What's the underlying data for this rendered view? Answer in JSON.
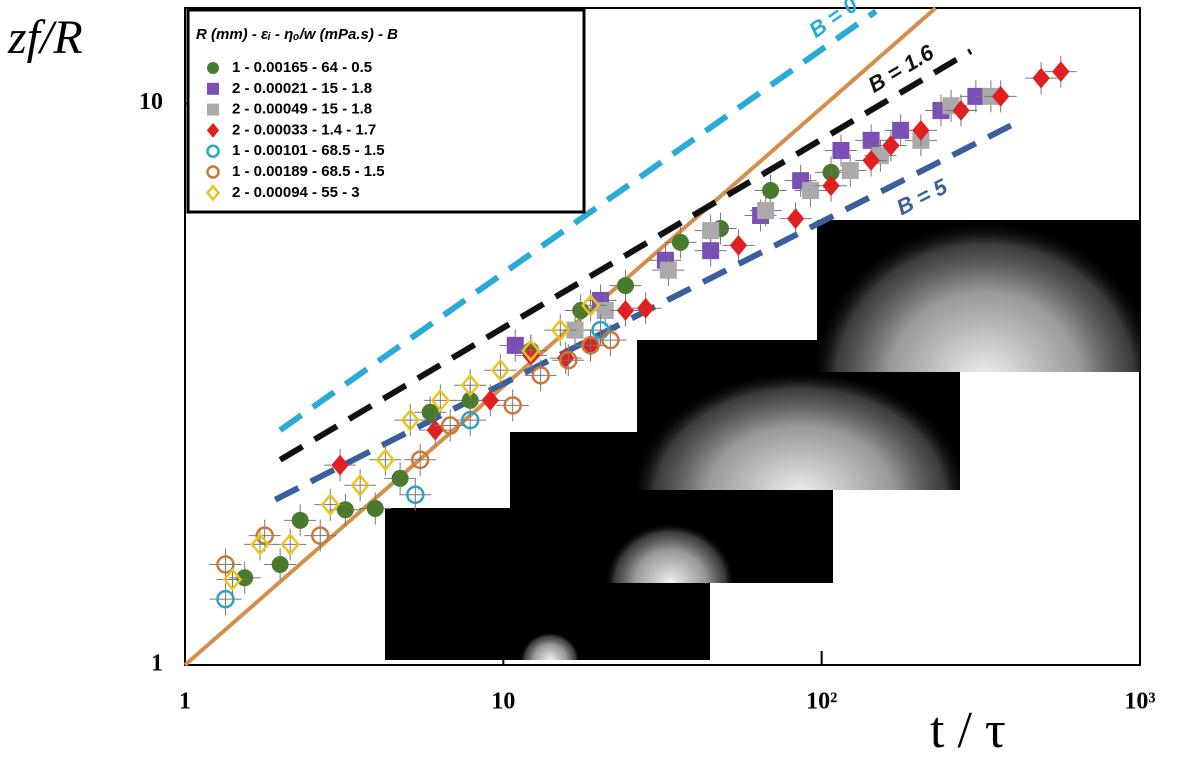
{
  "chart_data": {
    "type": "scatter",
    "y_label": "zf/R",
    "x_label": "t / τ",
    "legend_title": "R  (mm) - εᵢ - ηₒ/w (mPa.s) - B",
    "log_x": true,
    "log_y": true,
    "xlim": [
      1,
      1000
    ],
    "ylim": [
      1,
      14.8
    ],
    "xticks": [
      1,
      10,
      {
        "value": 100,
        "label": "10²"
      },
      {
        "value": 1000,
        "label": "10³"
      }
    ],
    "yticks": [
      1,
      10
    ],
    "lines": [
      {
        "color": "#d4904a",
        "dash": false,
        "x": [
          1,
          228
        ],
        "y": [
          1,
          14.8
        ]
      },
      {
        "name": "B = 0",
        "color": "#2aaad6",
        "dash": true,
        "x": [
          1.99,
          148
        ],
        "y": [
          2.62,
          14.6
        ]
      },
      {
        "name": "B = 1.6",
        "color": "#111111",
        "dash": true,
        "x": [
          1.99,
          294
        ],
        "y": [
          2.32,
          12.4
        ]
      },
      {
        "name": "B = 5",
        "color": "#3a5f9a",
        "dash": true,
        "x": [
          1.92,
          393
        ],
        "y": [
          1.97,
          9.14
        ]
      }
    ],
    "series": [
      {
        "name": "1 - 0.00165 - 64 - 0.5",
        "color": "#4a7a2e",
        "marker": "circle",
        "filled": true,
        "x": [
          1.54,
          1.99,
          2.3,
          3.19,
          3.96,
          4.74,
          5.89,
          7.87,
          12.2,
          17.5,
          24.2,
          36.0,
          48.1,
          69.1,
          107
        ],
        "y": [
          1.43,
          1.51,
          1.81,
          1.89,
          1.9,
          2.15,
          2.82,
          2.96,
          3.63,
          4.28,
          4.74,
          5.66,
          5.99,
          7.0,
          7.54
        ]
      },
      {
        "name": "2 - 0.00021 - 15 - 1.8",
        "color": "#7b4fb5",
        "marker": "square",
        "filled": true,
        "x": [
          10.9,
          20.2,
          32.3,
          44.8,
          64.3,
          85.9,
          115,
          143,
          177,
          237,
          305
        ],
        "y": [
          3.71,
          4.46,
          5.26,
          5.47,
          6.32,
          7.29,
          8.25,
          8.6,
          8.96,
          9.72,
          10.3
        ]
      },
      {
        "name": "2 - 0.00049 - 15 - 1.8",
        "color": "#aaaaaa",
        "marker": "square",
        "filled": true,
        "x": [
          16.8,
          20.9,
          33.0,
          44.8,
          66.7,
          92.3,
          123,
          153,
          205,
          255,
          340
        ],
        "y": [
          3.95,
          4.28,
          5.05,
          5.94,
          6.45,
          7.0,
          7.6,
          8.08,
          8.6,
          9.91,
          10.3
        ]
      },
      {
        "name": "2 - 0.00033 - 1.4 - 1.7",
        "color": "#e02020",
        "marker": "diamond",
        "filled": true,
        "x": [
          3.07,
          6.11,
          9.1,
          12.2,
          15.7,
          18.8,
          24.2,
          28.0,
          54.8,
          82.8,
          107,
          143,
          165,
          205,
          274,
          365,
          489,
          564
        ],
        "y": [
          2.27,
          2.62,
          2.96,
          3.56,
          3.52,
          3.71,
          4.28,
          4.32,
          5.59,
          6.24,
          7.14,
          7.92,
          8.42,
          8.96,
          9.72,
          10.3,
          11.1,
          11.4
        ]
      },
      {
        "name": "1 - 0.00101 - 68.5 - 1.5",
        "color": "#2aa4c8",
        "marker": "circle",
        "filled": false,
        "x": [
          1.34,
          5.29,
          7.87,
          20.2
        ],
        "y": [
          1.31,
          2.01,
          2.73,
          3.95
        ]
      },
      {
        "name": "1 - 0.00189 - 68.5 - 1.5",
        "color": "#c87a3a",
        "marker": "circle",
        "filled": false,
        "x": [
          1.34,
          1.78,
          2.66,
          5.48,
          6.81,
          10.7,
          13.1,
          16.0,
          18.8,
          21.7
        ],
        "y": [
          1.51,
          1.7,
          1.7,
          2.32,
          2.67,
          2.9,
          3.28,
          3.49,
          3.71,
          3.79
        ]
      },
      {
        "name": "2 - 0.00094 - 55 - 3",
        "color": "#e8c520",
        "marker": "diamond",
        "filled": false,
        "x": [
          1.41,
          1.72,
          2.14,
          2.86,
          3.55,
          4.26,
          5.1,
          6.34,
          7.87,
          9.79,
          12.2,
          15.1,
          18.8
        ],
        "y": [
          1.42,
          1.64,
          1.64,
          1.93,
          2.09,
          2.32,
          2.73,
          2.96,
          3.15,
          3.35,
          3.63,
          3.95,
          4.37
        ]
      }
    ]
  }
}
